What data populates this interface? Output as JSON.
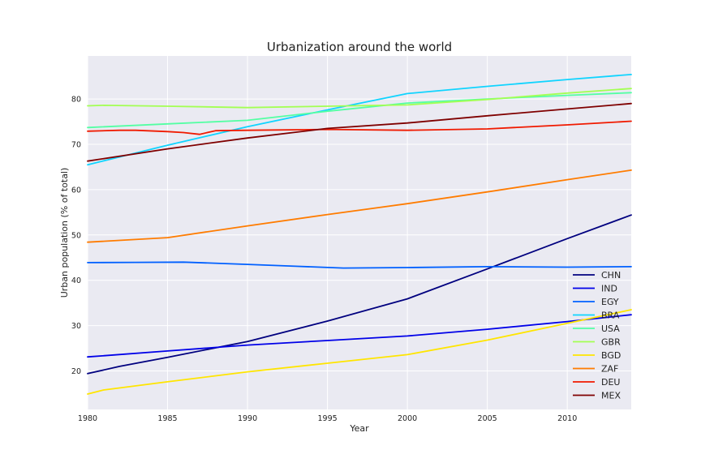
{
  "chart_data": {
    "type": "line",
    "title": "Urbanization around the world",
    "xlabel": "Year",
    "ylabel": "Urban population (% of total)",
    "xlim": [
      1980,
      2014
    ],
    "ylim": [
      11.5,
      89.5
    ],
    "xticks": [
      1980,
      1985,
      1990,
      1995,
      2000,
      2005,
      2010
    ],
    "yticks": [
      20,
      30,
      40,
      50,
      60,
      70,
      80
    ],
    "grid": true,
    "background": "#eaeaf2",
    "legend_position": "bottom-right",
    "series": [
      {
        "name": "CHN",
        "color": "#00007f",
        "x": [
          1980,
          1982,
          1985,
          1990,
          1995,
          2000,
          2005,
          2010,
          2014
        ],
        "y": [
          19.4,
          21.0,
          23.0,
          26.5,
          31.0,
          35.9,
          42.5,
          49.2,
          54.4
        ]
      },
      {
        "name": "IND",
        "color": "#0000e8",
        "x": [
          1980,
          1985,
          1990,
          1995,
          2000,
          2005,
          2010,
          2014
        ],
        "y": [
          23.1,
          24.4,
          25.7,
          26.7,
          27.7,
          29.2,
          30.9,
          32.4
        ]
      },
      {
        "name": "EGY",
        "color": "#0060ff",
        "x": [
          1980,
          1983,
          1986,
          1990,
          1993,
          1996,
          2000,
          2005,
          2010,
          2014
        ],
        "y": [
          43.9,
          43.95,
          44.0,
          43.5,
          43.1,
          42.7,
          42.8,
          43.0,
          42.9,
          43.0
        ]
      },
      {
        "name": "BRA",
        "color": "#10d4ff",
        "x": [
          1980,
          1985,
          1990,
          1995,
          2000,
          2005,
          2010,
          2014
        ],
        "y": [
          65.5,
          69.8,
          73.9,
          77.6,
          81.2,
          82.8,
          84.3,
          85.4
        ]
      },
      {
        "name": "USA",
        "color": "#53ffa3",
        "x": [
          1980,
          1985,
          1990,
          1995,
          2000,
          2005,
          2010,
          2014
        ],
        "y": [
          73.7,
          74.5,
          75.3,
          77.3,
          79.1,
          80.0,
          80.8,
          81.4
        ]
      },
      {
        "name": "GBR",
        "color": "#a3ff53",
        "x": [
          1980,
          1981,
          1985,
          1990,
          1995,
          2000,
          2005,
          2010,
          2014
        ],
        "y": [
          78.5,
          78.6,
          78.4,
          78.1,
          78.4,
          78.7,
          79.9,
          81.3,
          82.3
        ]
      },
      {
        "name": "BGD",
        "color": "#ffe500",
        "x": [
          1980,
          1981,
          1985,
          1990,
          1995,
          2000,
          2005,
          2010,
          2014
        ],
        "y": [
          14.9,
          15.8,
          17.6,
          19.8,
          21.7,
          23.6,
          26.8,
          30.5,
          33.5
        ]
      },
      {
        "name": "ZAF",
        "color": "#ff7c00",
        "x": [
          1980,
          1985,
          1990,
          1995,
          2000,
          2005,
          2010,
          2014
        ],
        "y": [
          48.4,
          49.4,
          52.0,
          54.5,
          56.9,
          59.5,
          62.2,
          64.3
        ]
      },
      {
        "name": "DEU",
        "color": "#f01a00",
        "x": [
          1980,
          1982,
          1983,
          1985,
          1986,
          1987,
          1988,
          1990,
          1995,
          2000,
          2005,
          2010,
          2014
        ],
        "y": [
          72.9,
          73.1,
          73.1,
          72.8,
          72.6,
          72.2,
          73.0,
          73.1,
          73.3,
          73.1,
          73.4,
          74.3,
          75.1
        ]
      },
      {
        "name": "MEX",
        "color": "#7f0000",
        "x": [
          1980,
          1985,
          1990,
          1995,
          2000,
          2005,
          2010,
          2014
        ],
        "y": [
          66.3,
          69.0,
          71.4,
          73.5,
          74.7,
          76.3,
          77.8,
          79.0
        ]
      }
    ]
  }
}
